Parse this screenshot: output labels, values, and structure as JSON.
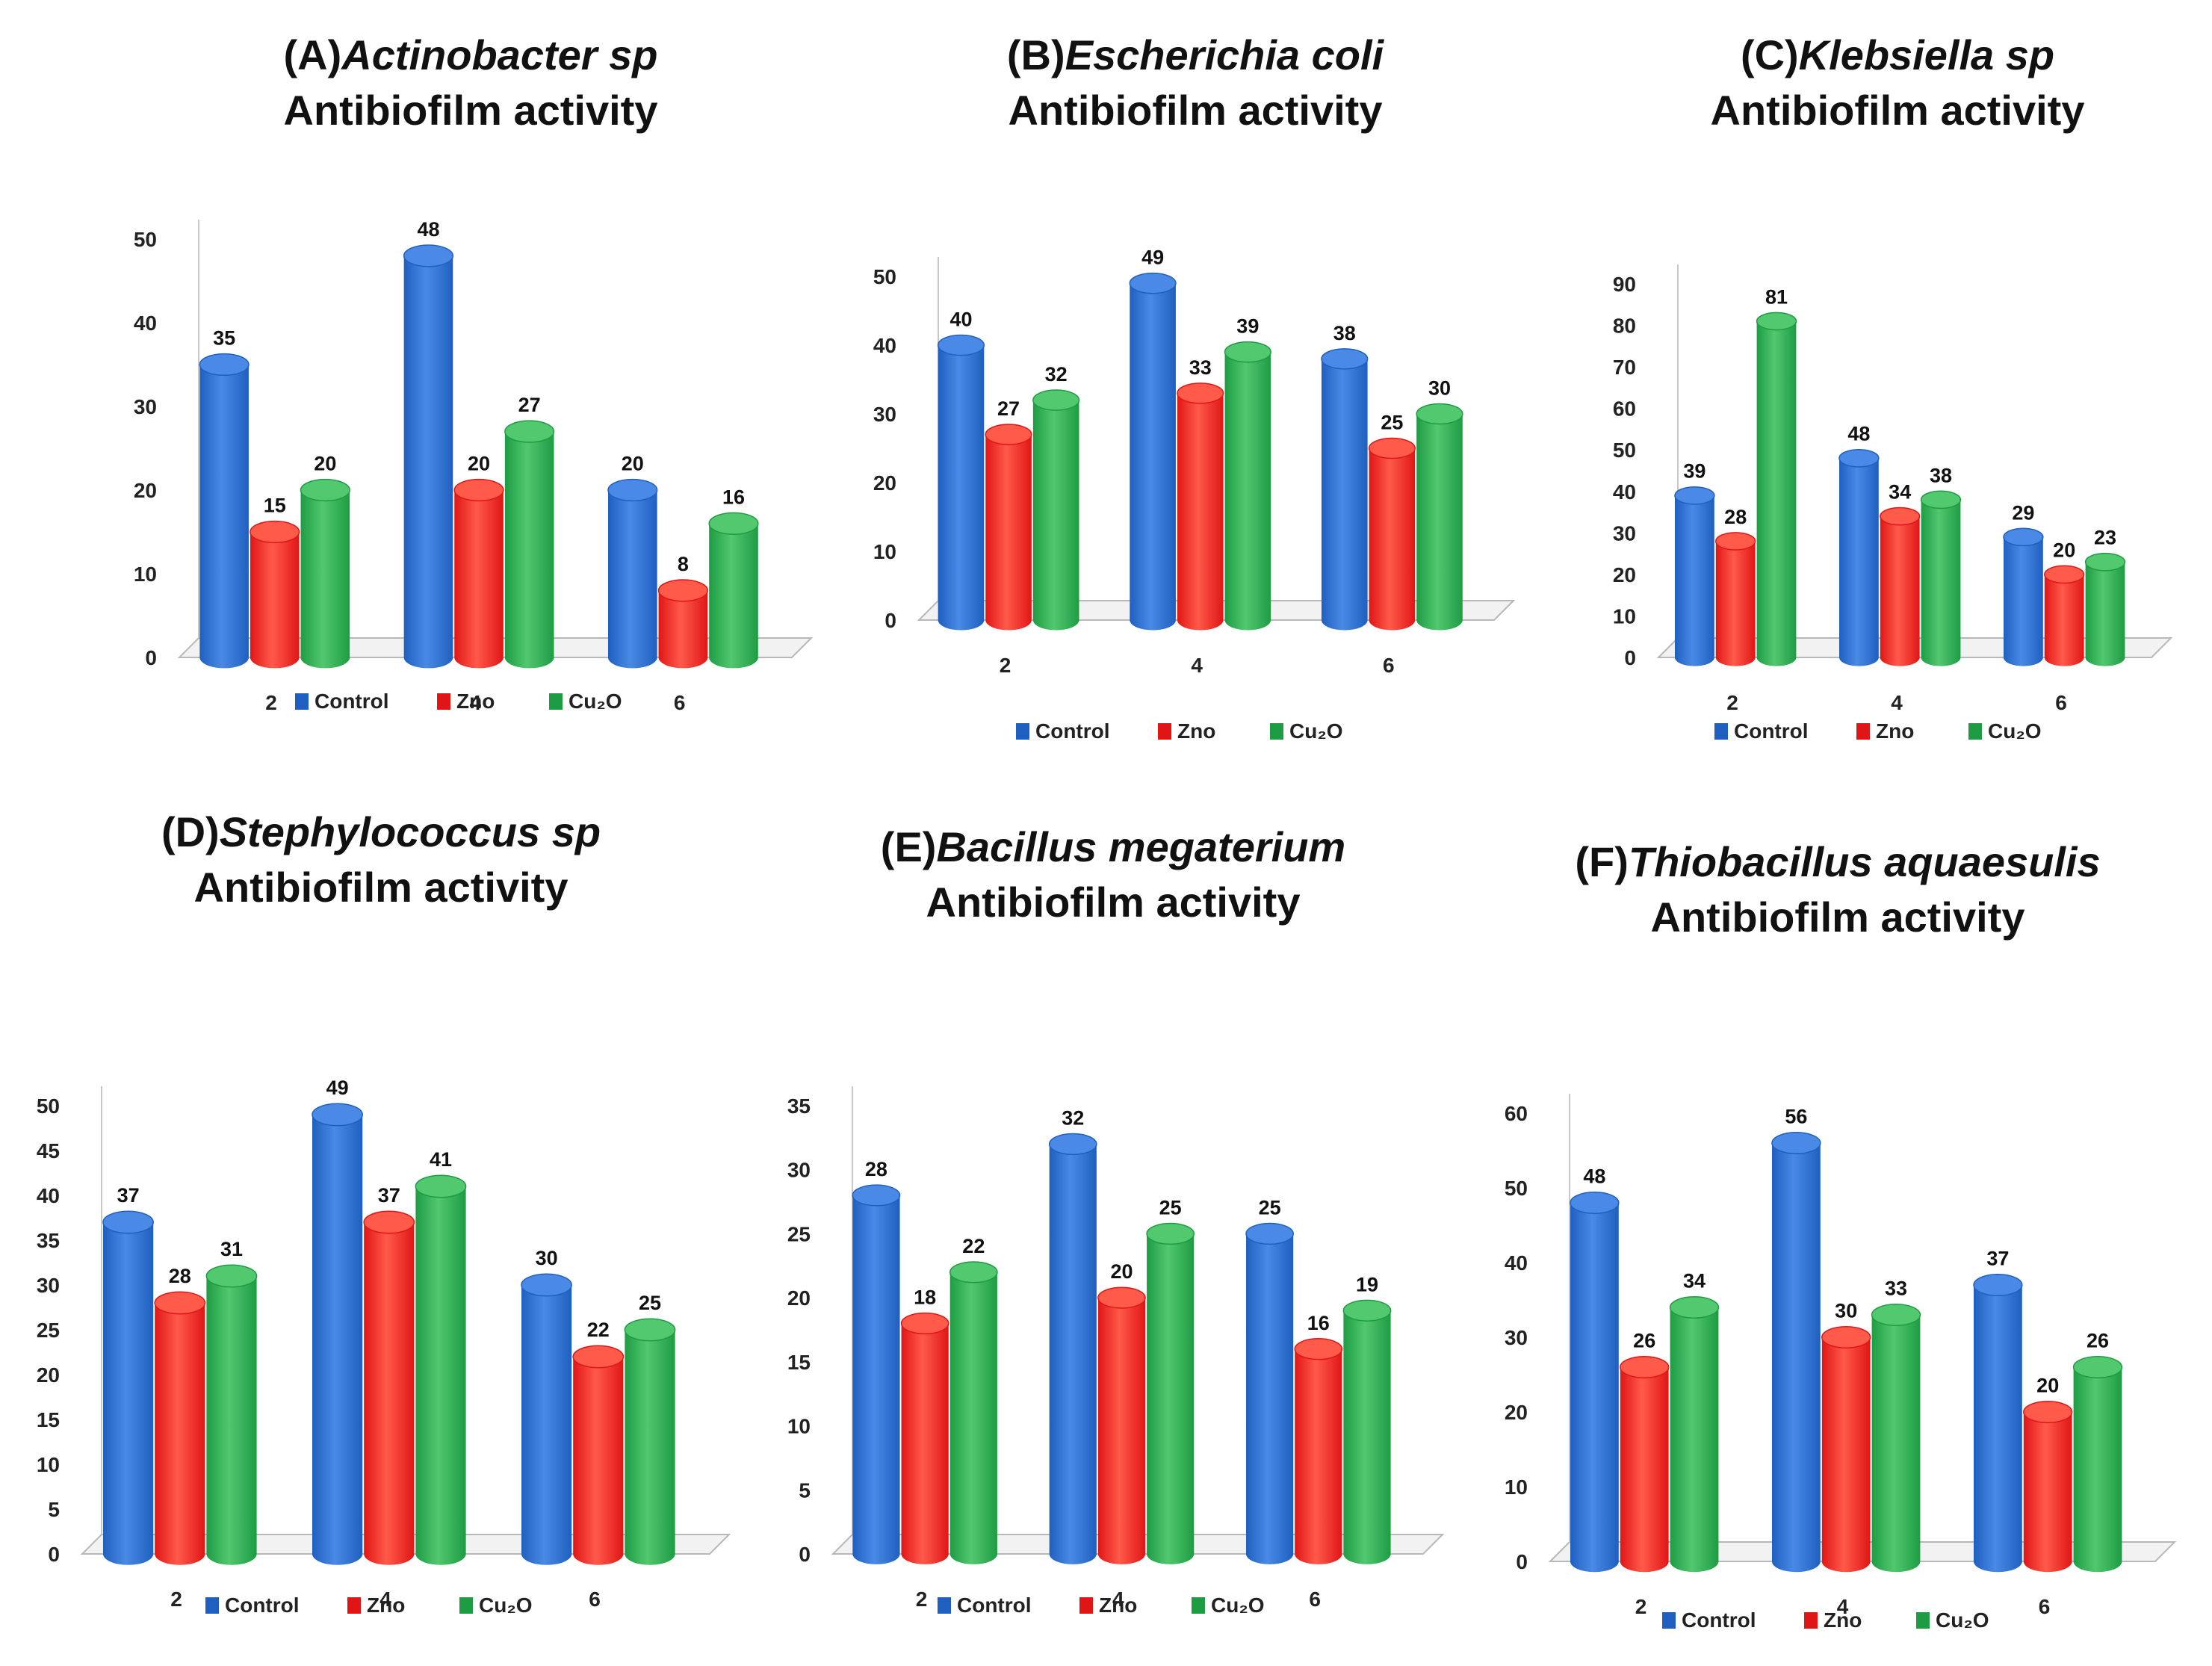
{
  "chart_data": [
    {
      "type": "bar",
      "title_prefix": "(A)",
      "title_species": "Actinobacter sp",
      "title_line2": "Antibiofilm activity",
      "categories": [
        "2",
        "4",
        "6"
      ],
      "ylim": [
        0,
        50
      ],
      "yticks": [
        "0",
        "10",
        "20",
        "30",
        "40",
        "50"
      ],
      "series": [
        {
          "name": "Control",
          "values": [
            35,
            48,
            20
          ]
        },
        {
          "name": "Zno",
          "values": [
            15,
            20,
            8
          ]
        },
        {
          "name": "Cu₂O",
          "values": [
            20,
            27,
            16
          ]
        }
      ]
    },
    {
      "type": "bar",
      "title_prefix": "(B)",
      "title_species": "Escherichia coli",
      "title_line2": "Antibiofilm activity",
      "categories": [
        "2",
        "4",
        "6"
      ],
      "ylim": [
        0,
        50
      ],
      "yticks": [
        "0",
        "10",
        "20",
        "30",
        "40",
        "50"
      ],
      "series": [
        {
          "name": "Control",
          "values": [
            40,
            49,
            38
          ]
        },
        {
          "name": "Zno",
          "values": [
            27,
            33,
            25
          ]
        },
        {
          "name": "Cu₂O",
          "values": [
            32,
            39,
            30
          ]
        }
      ]
    },
    {
      "type": "bar",
      "title_prefix": "(C)",
      "title_species": "Klebsiella sp",
      "title_line2": "Antibiofilm activity",
      "categories": [
        "2",
        "4",
        "6"
      ],
      "ylim": [
        0,
        90
      ],
      "yticks": [
        "0",
        "10",
        "20",
        "30",
        "40",
        "50",
        "60",
        "70",
        "80",
        "90"
      ],
      "series": [
        {
          "name": "Control",
          "values": [
            39,
            48,
            29
          ]
        },
        {
          "name": "Zno",
          "values": [
            28,
            34,
            20
          ]
        },
        {
          "name": "Cu₂O",
          "values": [
            81,
            38,
            23
          ]
        }
      ]
    },
    {
      "type": "bar",
      "title_prefix": "(D)",
      "title_species": "Stephylococcus sp",
      "title_line2": "Antibiofilm activity",
      "categories": [
        "2",
        "4",
        "6"
      ],
      "ylim": [
        0,
        50
      ],
      "yticks": [
        "0",
        "5",
        "10",
        "15",
        "20",
        "25",
        "30",
        "35",
        "40",
        "45",
        "50"
      ],
      "series": [
        {
          "name": "Control",
          "values": [
            37,
            49,
            30
          ]
        },
        {
          "name": "Zno",
          "values": [
            28,
            37,
            22
          ]
        },
        {
          "name": "Cu₂O",
          "values": [
            31,
            41,
            25
          ]
        }
      ]
    },
    {
      "type": "bar",
      "title_prefix": "(E)",
      "title_species": "Bacillus  megaterium",
      "title_line2": "Antibiofilm activity",
      "categories": [
        "2",
        "4",
        "6"
      ],
      "ylim": [
        0,
        35
      ],
      "yticks": [
        "0",
        "5",
        "10",
        "15",
        "20",
        "25",
        "30",
        "35"
      ],
      "series": [
        {
          "name": "Control",
          "values": [
            28,
            32,
            25
          ]
        },
        {
          "name": "Zno",
          "values": [
            18,
            20,
            16
          ]
        },
        {
          "name": "Cu₂O",
          "values": [
            22,
            25,
            19
          ]
        }
      ]
    },
    {
      "type": "bar",
      "title_prefix": "(F)",
      "title_species": "Thiobacillus aquaesulis",
      "title_line2": "Antibiofilm activity",
      "categories": [
        "2",
        "4",
        "6"
      ],
      "ylim": [
        0,
        60
      ],
      "yticks": [
        "0",
        "10",
        "20",
        "30",
        "40",
        "50",
        "60"
      ],
      "series": [
        {
          "name": "Control",
          "values": [
            48,
            56,
            37
          ]
        },
        {
          "name": "Zno",
          "values": [
            26,
            30,
            20
          ]
        },
        {
          "name": "Cu₂O",
          "values": [
            34,
            33,
            26
          ]
        }
      ]
    }
  ],
  "colors": {
    "control": "#1f5fbf",
    "control_light": "#4a8ae6",
    "zno": "#e01616",
    "zno_light": "#ff5a4a",
    "cu2o": "#1e9c44",
    "cu2o_light": "#52c86f"
  }
}
